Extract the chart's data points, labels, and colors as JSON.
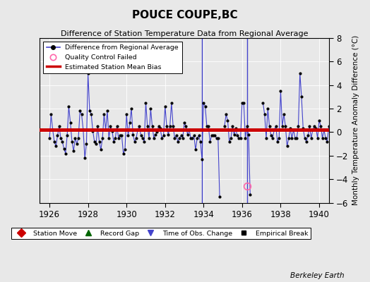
{
  "title": "POUCE COUPE,BC",
  "subtitle": "Difference of Station Temperature Data from Regional Average",
  "ylabel": "Monthly Temperature Anomaly Difference (°C)",
  "xlabel_years": [
    1926,
    1928,
    1930,
    1932,
    1934,
    1936,
    1938,
    1940
  ],
  "xlim": [
    1925.5,
    1940.5
  ],
  "ylim": [
    -6,
    8
  ],
  "yticks": [
    -6,
    -4,
    -2,
    0,
    2,
    4,
    6,
    8
  ],
  "bias_value": 0.2,
  "background_color": "#e8e8e8",
  "plot_bg_color": "#e8e8e8",
  "line_color": "#4444cc",
  "bias_color": "#cc0000",
  "qc_fail_color": "#ff88aa",
  "obs_change1_x": 1933.92,
  "obs_change2_x": 1936.25,
  "qc_fail_x": 1936.25,
  "qc_fail_y": -4.6,
  "watermark": "Berkeley Earth",
  "data_x": [
    1926.0,
    1926.083,
    1926.167,
    1926.25,
    1926.333,
    1926.417,
    1926.5,
    1926.583,
    1926.667,
    1926.75,
    1926.833,
    1926.917,
    1927.0,
    1927.083,
    1927.167,
    1927.25,
    1927.333,
    1927.417,
    1927.5,
    1927.583,
    1927.667,
    1927.75,
    1927.833,
    1927.917,
    1928.0,
    1928.083,
    1928.167,
    1928.25,
    1928.333,
    1928.417,
    1928.5,
    1928.583,
    1928.667,
    1928.75,
    1928.833,
    1928.917,
    1929.0,
    1929.083,
    1929.167,
    1929.25,
    1929.333,
    1929.417,
    1929.5,
    1929.583,
    1929.667,
    1929.75,
    1929.833,
    1929.917,
    1930.0,
    1930.083,
    1930.167,
    1930.25,
    1930.333,
    1930.417,
    1930.5,
    1930.583,
    1930.667,
    1930.75,
    1930.833,
    1930.917,
    1931.0,
    1931.083,
    1931.167,
    1931.25,
    1931.333,
    1931.417,
    1931.5,
    1931.583,
    1931.667,
    1931.75,
    1931.833,
    1931.917,
    1932.0,
    1932.083,
    1932.167,
    1932.25,
    1932.333,
    1932.417,
    1932.5,
    1932.583,
    1932.667,
    1932.75,
    1932.833,
    1932.917,
    1933.0,
    1933.083,
    1933.167,
    1933.25,
    1933.333,
    1933.417,
    1933.5,
    1933.583,
    1933.667,
    1933.75,
    1933.833,
    1933.917,
    1934.0,
    1934.083,
    1934.167,
    1934.25,
    1934.333,
    1934.417,
    1934.5,
    1934.583,
    1934.667,
    1934.75,
    1934.833,
    1934.917,
    1935.0,
    1935.083,
    1935.167,
    1935.25,
    1935.333,
    1935.417,
    1935.5,
    1935.583,
    1935.667,
    1935.75,
    1935.833,
    1935.917,
    1936.0,
    1936.083,
    1936.167,
    1936.25,
    1936.333,
    1936.417,
    1936.5,
    1936.583,
    1936.667,
    1936.75,
    1936.833,
    1936.917,
    1937.0,
    1937.083,
    1937.167,
    1937.25,
    1937.333,
    1937.417,
    1937.5,
    1937.583,
    1937.667,
    1937.75,
    1937.833,
    1937.917,
    1938.0,
    1938.083,
    1938.167,
    1938.25,
    1938.333,
    1938.417,
    1938.5,
    1938.583,
    1938.667,
    1938.75,
    1938.833,
    1938.917,
    1939.0,
    1939.083,
    1939.167,
    1939.25,
    1939.333,
    1939.417,
    1939.5,
    1939.583,
    1939.667,
    1939.75,
    1939.833,
    1939.917,
    1940.0,
    1940.083,
    1940.167,
    1940.25,
    1940.333,
    1940.417,
    1940.5,
    1940.583,
    1940.667,
    1940.75
  ],
  "data_y": [
    -0.5,
    1.5,
    0.2,
    -0.8,
    -1.2,
    -0.3,
    0.5,
    -0.5,
    -0.8,
    -1.4,
    -1.8,
    -0.3,
    2.2,
    0.8,
    -0.8,
    -1.6,
    -0.5,
    -1.0,
    -0.5,
    1.8,
    1.5,
    0.2,
    -2.2,
    -1.0,
    5.0,
    1.8,
    1.5,
    0.1,
    -0.8,
    -1.0,
    0.5,
    -0.8,
    -1.5,
    -0.5,
    1.5,
    0.2,
    1.8,
    -0.5,
    0.5,
    0.1,
    -0.8,
    -0.5,
    0.5,
    -0.5,
    -0.3,
    -0.3,
    -1.8,
    -1.5,
    1.5,
    -0.3,
    0.8,
    2.0,
    -0.2,
    -0.8,
    -0.5,
    0.2,
    0.5,
    -0.3,
    -0.5,
    -0.8,
    2.5,
    0.5,
    -0.5,
    2.0,
    0.5,
    -0.5,
    -0.2,
    0.0,
    0.5,
    0.3,
    -0.5,
    -0.3,
    2.2,
    0.5,
    -0.2,
    0.5,
    2.5,
    0.5,
    -0.5,
    -0.3,
    -0.8,
    -0.5,
    -0.3,
    -0.5,
    0.8,
    0.5,
    -0.2,
    0.2,
    -0.5,
    -0.5,
    -0.3,
    -1.5,
    -0.5,
    -0.3,
    -0.8,
    -2.3,
    2.5,
    2.2,
    0.5,
    0.5,
    -0.8,
    -0.3,
    -0.3,
    -0.3,
    -0.5,
    -0.5,
    -5.5,
    null,
    null,
    0.5,
    1.5,
    1.0,
    -0.8,
    -0.5,
    0.5,
    -0.2,
    0.3,
    -0.3,
    -0.5,
    -0.5,
    2.5,
    2.5,
    -0.5,
    0.5,
    -0.2,
    -5.3,
    null,
    null,
    null,
    null,
    null,
    null,
    null,
    2.5,
    1.5,
    -0.5,
    2.0,
    0.5,
    -0.3,
    -0.5,
    0.2,
    0.5,
    -0.8,
    -0.5,
    3.5,
    0.5,
    1.5,
    0.5,
    -1.2,
    -0.5,
    0.3,
    -0.5,
    0.2,
    -0.5,
    -0.5,
    0.5,
    5.0,
    3.0,
    0.3,
    -0.5,
    -0.8,
    -0.3,
    0.5,
    -0.5,
    0.2,
    0.5,
    0.3,
    -0.5,
    1.0,
    0.5,
    -0.5,
    0.2,
    -0.5,
    -0.8,
    0.5,
    -0.5,
    0.3,
    0.2
  ]
}
